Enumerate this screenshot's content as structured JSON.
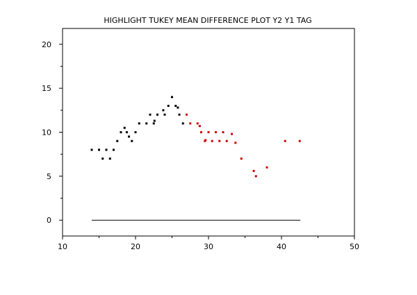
{
  "chart_data": {
    "type": "scatter",
    "title": "HIGHLIGHT TUKEY MEAN DIFFERENCE PLOT Y2 Y1 TAG",
    "xlabel": "",
    "ylabel": "",
    "xlim": [
      10,
      50
    ],
    "ylim": [
      -1.8,
      21.8
    ],
    "x_ticks": [
      10,
      20,
      30,
      40,
      50
    ],
    "x_tick_labels": [
      "10",
      "20",
      "30",
      "40",
      "50"
    ],
    "x_minor_ticks": [
      15,
      25,
      35,
      45
    ],
    "y_ticks": [
      0,
      5,
      10,
      15,
      20
    ],
    "y_tick_labels": [
      "0",
      "5",
      "10",
      "15",
      "20"
    ],
    "y_minor_ticks": [
      2.5,
      7.5,
      12.5,
      17.5
    ],
    "grid": false,
    "series": [
      {
        "color": "#000000",
        "points": [
          [
            14,
            8
          ],
          [
            15,
            8
          ],
          [
            15.5,
            7
          ],
          [
            16,
            8
          ],
          [
            16.5,
            7
          ],
          [
            17,
            8
          ],
          [
            17.5,
            9
          ],
          [
            18,
            10
          ],
          [
            18.5,
            10.5
          ],
          [
            18.8,
            10
          ],
          [
            19.1,
            9.5
          ],
          [
            19.5,
            9
          ],
          [
            20,
            10
          ],
          [
            20.5,
            11
          ],
          [
            21.5,
            11
          ],
          [
            22,
            12
          ],
          [
            22.5,
            11
          ],
          [
            22.6,
            11.3
          ],
          [
            23,
            12
          ],
          [
            23.8,
            12.5
          ],
          [
            24,
            12
          ],
          [
            24.5,
            13
          ],
          [
            25,
            14
          ],
          [
            25.5,
            13
          ],
          [
            25.8,
            12.8
          ],
          [
            26,
            12
          ],
          [
            26.5,
            11
          ]
        ]
      },
      {
        "color": "#cc0000",
        "points": [
          [
            27,
            12
          ],
          [
            27.5,
            11
          ],
          [
            28.5,
            11
          ],
          [
            28.8,
            10.7
          ],
          [
            29,
            10
          ],
          [
            29.5,
            9
          ],
          [
            29.6,
            9.1
          ],
          [
            30,
            10
          ],
          [
            30.5,
            9
          ],
          [
            31,
            10
          ],
          [
            31.5,
            9
          ],
          [
            32,
            10
          ],
          [
            32.5,
            9
          ],
          [
            33.2,
            9.8
          ],
          [
            33.7,
            8.8
          ],
          [
            34.5,
            7
          ],
          [
            36.2,
            5.6
          ],
          [
            36.5,
            5
          ],
          [
            38,
            6
          ],
          [
            40.5,
            9
          ],
          [
            42.5,
            9
          ]
        ]
      }
    ],
    "reference_line": {
      "y": 0,
      "x_start": 14,
      "x_end": 42.6,
      "color": "#000000"
    }
  }
}
